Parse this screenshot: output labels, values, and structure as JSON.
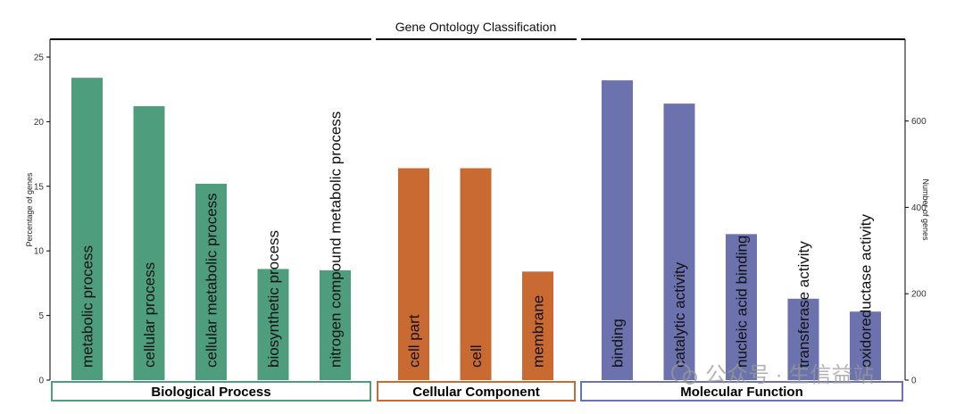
{
  "chart_data": {
    "type": "bar",
    "title": "Gene Ontology Classification",
    "ylabel_left": "Percentage of genes",
    "ylabel_right": "Number of genes",
    "ylim_left": [
      0,
      25
    ],
    "yticks_left": [
      0,
      5,
      10,
      15,
      20,
      25
    ],
    "ylim_right": [
      0,
      748
    ],
    "yticks_right": [
      0,
      200,
      400,
      600
    ],
    "groups": [
      {
        "name": "Biological Process",
        "color": "#4e9e7e",
        "categories": [
          "metabolic process",
          "cellular process",
          "cellular metabolic process",
          "biosynthetic process",
          "nitrogen compound metabolic process"
        ],
        "values": [
          23.4,
          21.2,
          15.2,
          8.6,
          8.5
        ]
      },
      {
        "name": "Cellular Component",
        "color": "#c96a33",
        "categories": [
          "cell part",
          "cell",
          "membrane"
        ],
        "values": [
          16.4,
          16.4,
          8.4
        ]
      },
      {
        "name": "Molecular Function",
        "color": "#6b72ad",
        "categories": [
          "binding",
          "catalytic activity",
          "nucleic acid binding",
          "transferase activity",
          "oxidoreductase activity"
        ],
        "values": [
          23.2,
          21.4,
          11.3,
          6.3,
          5.3
        ]
      }
    ],
    "grid": false,
    "legend": "none"
  },
  "watermark": "公众号 · 生信益站"
}
